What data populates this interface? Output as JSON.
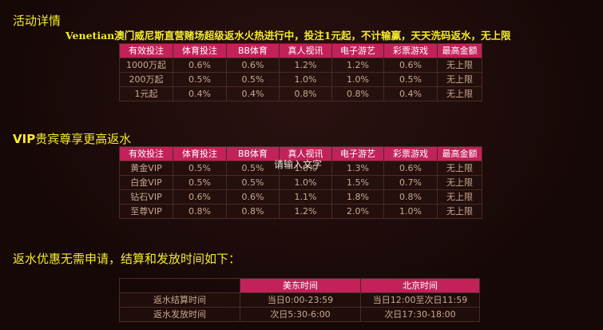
{
  "section1": {
    "title": "活动详情",
    "promo": "Venetian澳门威尼斯直营赌场超级返水火热进行中，投注1元起，不计输赢，天天洗码返水，无上限",
    "headers": [
      "有效投注",
      "体育投注",
      "BB体育",
      "真人视讯",
      "电子游艺",
      "彩票游戏",
      "最高金额"
    ],
    "rows": [
      [
        "1000万起",
        "0.6%",
        "0.6%",
        "1.2%",
        "1.2%",
        "0.6%",
        "无上限"
      ],
      [
        "200万起",
        "0.5%",
        "0.5%",
        "1.0%",
        "1.0%",
        "0.5%",
        "无上限"
      ],
      [
        "1元起",
        "0.4%",
        "0.4%",
        "0.8%",
        "0.8%",
        "0.4%",
        "无上限"
      ]
    ]
  },
  "section2": {
    "title_strong": "VIP",
    "title_rest": "贵宾尊享更高返水",
    "headers": [
      "有效投注",
      "体育投注",
      "BB体育",
      "真人视讯",
      "电子游艺",
      "彩票游戏",
      "最高金额"
    ],
    "rows": [
      [
        "黄金VIP",
        "0.5%",
        "0.5%",
        "1.0%",
        "1.3%",
        "0.6%",
        "无上限"
      ],
      [
        "白金VIP",
        "0.5%",
        "0.5%",
        "1.0%",
        "1.5%",
        "0.7%",
        "无上限"
      ],
      [
        "钻石VIP",
        "0.6%",
        "0.6%",
        "1.1%",
        "1.8%",
        "0.8%",
        "无上限"
      ],
      [
        "至尊VIP",
        "0.8%",
        "0.8%",
        "1.2%",
        "2.0%",
        "1.0%",
        "无上限"
      ]
    ],
    "watermark": "请输入文字"
  },
  "section3": {
    "title": "返水优惠无需申请，结算和发放时间如下：",
    "headers": [
      "",
      "美东时间",
      "北京时间"
    ],
    "rows": [
      [
        "返水结算时间",
        "当日0:00-23:59",
        "当日12:00至次日11:59"
      ],
      [
        "返水发放时间",
        "次日5:30-6:00",
        "次日17:30-18:00"
      ]
    ]
  },
  "colors": {
    "header_bg": "#c3215a",
    "heading_yellow": "#f3ea2a",
    "cell_text": "#c9a98f",
    "background": "#160807"
  }
}
